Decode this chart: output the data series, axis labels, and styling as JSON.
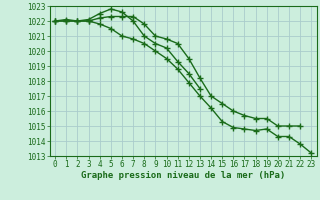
{
  "xlabel": "Graphe pression niveau de la mer (hPa)",
  "x": [
    0,
    1,
    2,
    3,
    4,
    5,
    6,
    7,
    8,
    9,
    10,
    11,
    12,
    13,
    14,
    15,
    16,
    17,
    18,
    19,
    20,
    21,
    22,
    23
  ],
  "line1": [
    1022.0,
    1022.1,
    1022.0,
    1022.1,
    1022.5,
    1022.8,
    1022.6,
    1022.0,
    1021.0,
    1020.5,
    1020.2,
    1019.3,
    1018.5,
    1017.5,
    null,
    null,
    null,
    null,
    null,
    null,
    null,
    null,
    null,
    null
  ],
  "line2": [
    1022.0,
    1022.0,
    1022.0,
    1022.0,
    1022.2,
    1022.3,
    1022.3,
    1022.3,
    1021.8,
    1021.0,
    1020.8,
    1020.5,
    1019.5,
    1018.2,
    1017.0,
    1016.5,
    1016.0,
    1015.7,
    1015.5,
    1015.5,
    1015.0,
    1015.0,
    1015.0,
    null
  ],
  "line3": [
    1022.0,
    1022.0,
    1022.0,
    1022.0,
    1021.8,
    1021.5,
    1021.0,
    1020.8,
    1020.5,
    1020.0,
    1019.5,
    1018.8,
    1017.9,
    1017.0,
    1016.2,
    1015.3,
    1014.9,
    1014.8,
    1014.7,
    1014.8,
    1014.3,
    1014.3,
    1013.8,
    1013.2
  ],
  "ylim": [
    1013,
    1023
  ],
  "yticks": [
    1013,
    1014,
    1015,
    1016,
    1017,
    1018,
    1019,
    1020,
    1021,
    1022,
    1023
  ],
  "xticks": [
    0,
    1,
    2,
    3,
    4,
    5,
    6,
    7,
    8,
    9,
    10,
    11,
    12,
    13,
    14,
    15,
    16,
    17,
    18,
    19,
    20,
    21,
    22,
    23
  ],
  "bg_color": "#cceedd",
  "grid_color": "#aacccc",
  "line_color": "#1a6b1a",
  "marker": "+",
  "marker_size": 4,
  "line_width": 1.0,
  "tick_fontsize": 5.5,
  "xlabel_fontsize": 6.5
}
